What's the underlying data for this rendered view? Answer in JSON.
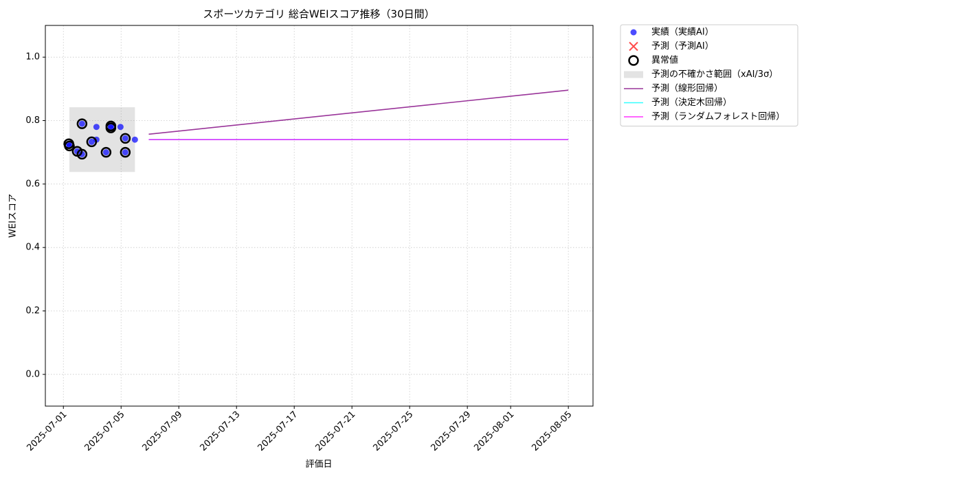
{
  "chart_data": {
    "type": "scatter",
    "title": "スポーツカテゴリ 総合WEIスコア推移（30日間）",
    "xlabel": "評価日",
    "ylabel": "WEIスコア",
    "xlim": [
      "2025-06-29T18:00",
      "2025-08-06T17:00"
    ],
    "ylim": [
      -0.1,
      1.1
    ],
    "xticks": [
      "2025-07-01",
      "2025-07-05",
      "2025-07-09",
      "2025-07-13",
      "2025-07-17",
      "2025-07-21",
      "2025-07-25",
      "2025-07-29",
      "2025-08-01",
      "2025-08-05"
    ],
    "yticks": [
      {
        "value": 0,
        "label": "0.0"
      },
      0.2,
      0.4,
      0.6,
      0.8,
      {
        "value": 1,
        "label": "1.0"
      }
    ],
    "grid": true,
    "legend": "outside-upper-right",
    "series": [
      {
        "name": "実績（実績AI）",
        "kind": "scatter",
        "color": "#0000ff",
        "x": [
          "2025-07-01T09:00",
          "2025-07-01T10:00",
          "2025-07-01T23:00",
          "2025-07-02T07:00",
          "2025-07-02T07:00",
          "2025-07-02T23:00",
          "2025-07-03T07:00",
          "2025-07-03T07:00",
          "2025-07-03T23:00",
          "2025-07-04T07:00",
          "2025-07-04T07:00",
          "2025-07-04T23:00",
          "2025-07-05T07:00",
          "2025-07-05T07:00",
          "2025-07-05T23:00"
        ],
        "values": [
          0.727,
          0.72,
          0.703,
          0.79,
          0.694,
          0.733,
          0.78,
          0.74,
          0.7,
          0.783,
          0.777,
          0.78,
          0.744,
          0.7,
          0.74
        ]
      },
      {
        "name": "予測（予測AI）",
        "kind": "cross",
        "color": "#ff0000",
        "x": [],
        "values": []
      },
      {
        "name": "異常値",
        "kind": "ring",
        "color": "#000000",
        "x": [
          "2025-07-01T09:00",
          "2025-07-01T10:00",
          "2025-07-01T23:00",
          "2025-07-02T07:00",
          "2025-07-02T07:00",
          "2025-07-02T23:00",
          "2025-07-03T23:00",
          "2025-07-04T07:00",
          "2025-07-04T07:00",
          "2025-07-05T07:00",
          "2025-07-05T07:00"
        ],
        "values": [
          0.727,
          0.72,
          0.703,
          0.79,
          0.694,
          0.733,
          0.7,
          0.783,
          0.777,
          0.744,
          0.7
        ]
      },
      {
        "name": "予測の不確かさ範囲（xAI/3σ）",
        "kind": "band",
        "color": "#808080",
        "x": [
          "2025-07-01T10:00",
          "2025-07-05T23:00"
        ],
        "lower": [
          0.638,
          0.638
        ],
        "upper": [
          0.842,
          0.842
        ]
      },
      {
        "name": "予測（線形回帰）",
        "kind": "line",
        "color": "#800080",
        "x": [
          "2025-07-06T22:00",
          "2025-08-05"
        ],
        "values": [
          0.757,
          0.896
        ]
      },
      {
        "name": "予測（決定木回帰）",
        "kind": "line",
        "color": "#00ffff",
        "x": [
          "2025-07-06T22:00",
          "2025-08-05"
        ],
        "values": [
          0.74,
          0.74
        ]
      },
      {
        "name": "予測（ランダムフォレスト回帰）",
        "kind": "line",
        "color": "#ff00ff",
        "x": [
          "2025-07-06T22:00",
          "2025-08-05"
        ],
        "values": [
          0.74,
          0.74
        ]
      }
    ]
  }
}
